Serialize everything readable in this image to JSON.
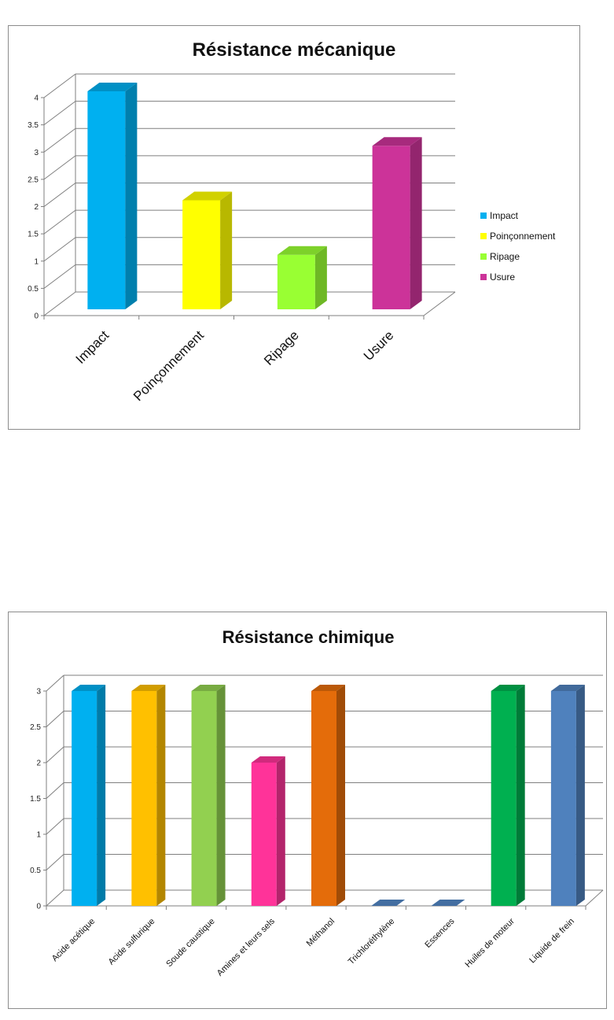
{
  "chart_data": [
    {
      "type": "bar",
      "title": "Résistance mécanique",
      "categories": [
        "Impact",
        "Poinçonnement",
        "Ripage",
        "Usure"
      ],
      "values": [
        4,
        2,
        1,
        3
      ],
      "colors": [
        "#00B0F0",
        "#FFFF00",
        "#99FF33",
        "#CC3399"
      ],
      "ylim": [
        0,
        4
      ],
      "yticks": [
        0,
        0.5,
        1,
        1.5,
        2,
        2.5,
        3,
        3.5,
        4
      ],
      "grid": true,
      "three_d": true,
      "legend": {
        "position": "right",
        "entries": [
          "Impact",
          "Poinçonnement",
          "Ripage",
          "Usure"
        ]
      }
    },
    {
      "type": "bar",
      "title": "Résistance chimique",
      "categories": [
        "Acide acétique",
        "Acide sulfurique",
        "Soude caustique",
        "Amines et leurs sels",
        "Méthanol",
        "Trichloréthylène",
        "Essences",
        "Huiles de moteur",
        "Liquide de frein"
      ],
      "values": [
        3,
        3,
        3,
        2,
        3,
        0,
        0,
        3,
        3
      ],
      "colors": [
        "#00B0F0",
        "#FFC000",
        "#92D050",
        "#FF3399",
        "#E46C0A",
        "#4F81BD",
        "#4F81BD",
        "#00B050",
        "#4F81BD"
      ],
      "ylim": [
        0,
        3
      ],
      "yticks": [
        0,
        0.5,
        1,
        1.5,
        2,
        2.5,
        3
      ],
      "grid": true,
      "three_d": true,
      "legend": null
    }
  ]
}
